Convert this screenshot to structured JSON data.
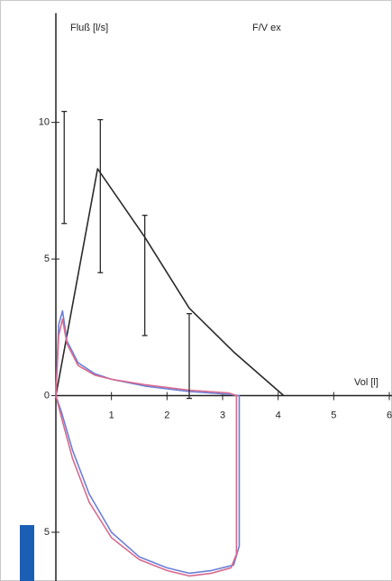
{
  "chart_data": {
    "type": "line",
    "title": "F/V ex",
    "y_label": "Fluß [l/s]",
    "x_label": "Vol [l]",
    "xlim": [
      0,
      6
    ],
    "xticks": [
      1,
      2,
      3,
      4,
      5,
      6
    ],
    "ylim": [
      -6.8,
      14
    ],
    "yticks": [
      {
        "value": -5,
        "label": "5"
      },
      0,
      5,
      10
    ],
    "series": [
      {
        "color": "#2a2a2a",
        "x": [
          0,
          0.75,
          1.6,
          2.4,
          3.2,
          4.1
        ],
        "values": [
          0,
          8.3,
          5.8,
          3.2,
          1.6,
          0
        ]
      },
      {
        "color": "#6b7fd6",
        "x": [
          0,
          0.05,
          0.12,
          0.2,
          0.4,
          0.7,
          1.0,
          1.6,
          2.4,
          3.1,
          3.3,
          3.3,
          3.2,
          2.8,
          2.4,
          2.0,
          1.5,
          1.0,
          0.6,
          0.3,
          0.1,
          0
        ],
        "values": [
          0,
          2.6,
          3.1,
          2.0,
          1.2,
          0.8,
          0.6,
          0.35,
          0.15,
          0.05,
          0,
          -5.5,
          -6.2,
          -6.4,
          -6.5,
          -6.3,
          -5.9,
          -5.0,
          -3.6,
          -2.0,
          -0.6,
          0
        ]
      },
      {
        "color": "#d86a8e",
        "x": [
          0,
          0.05,
          0.12,
          0.2,
          0.4,
          0.7,
          1.0,
          1.6,
          2.4,
          3.1,
          3.25,
          3.25,
          3.15,
          2.8,
          2.4,
          2.0,
          1.5,
          1.0,
          0.6,
          0.3,
          0.1,
          0
        ],
        "values": [
          0,
          2.2,
          2.8,
          1.9,
          1.1,
          0.75,
          0.6,
          0.4,
          0.2,
          0.1,
          0,
          -5.8,
          -6.3,
          -6.5,
          -6.6,
          -6.4,
          -6.0,
          -5.2,
          -3.9,
          -2.3,
          -0.8,
          0
        ]
      }
    ],
    "error_bars": {
      "color": "#2a2a2a",
      "x": [
        0.15,
        0.8,
        1.6,
        2.4
      ],
      "values": [
        8.35,
        7.3,
        4.4,
        1.45
      ],
      "errors": [
        2.05,
        2.8,
        2.2,
        1.55
      ]
    }
  }
}
